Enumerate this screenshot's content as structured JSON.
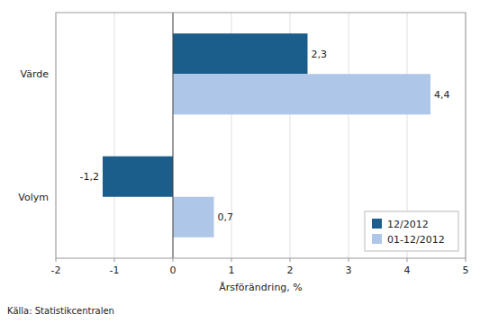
{
  "chart_data": {
    "type": "bar",
    "orientation": "horizontal",
    "categories": [
      "Värde",
      "Volym"
    ],
    "series": [
      {
        "name": "12/2012",
        "color": "#1b5e8b",
        "values": [
          2.3,
          -1.2
        ],
        "value_labels": [
          "2,3",
          "-1,2"
        ]
      },
      {
        "name": "01-12/2012",
        "color": "#aec6e8",
        "values": [
          4.4,
          0.7
        ],
        "value_labels": [
          "4,4",
          "0,7"
        ]
      }
    ],
    "xlim": [
      -2,
      5
    ],
    "xticks": [
      -2,
      -1,
      0,
      1,
      2,
      3,
      4,
      5
    ],
    "xlabel": "Årsförändring, %",
    "source": "Källa: Statistikcentralen",
    "grid": true,
    "legend": "lower right",
    "data_labels": true
  }
}
